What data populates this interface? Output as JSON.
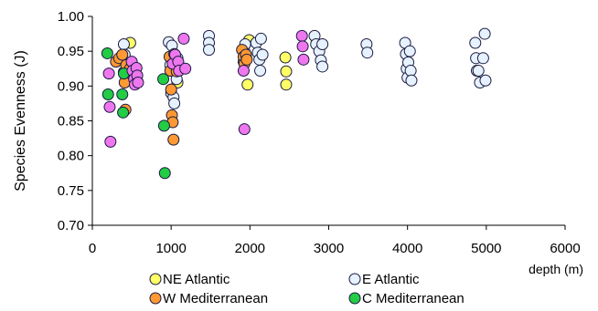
{
  "chart_data": {
    "type": "scatter",
    "title": "",
    "xlabel": "depth (m)",
    "ylabel": "Species Evenness (J)",
    "xlim": [
      0,
      6000
    ],
    "ylim": [
      0.7,
      1.0
    ],
    "xticks": [
      0,
      1000,
      2000,
      3000,
      4000,
      5000,
      6000
    ],
    "xtick_labels": [
      "0",
      "1000",
      "2000",
      "3000",
      "4000",
      "5000",
      "6000"
    ],
    "yticks": [
      0.7,
      0.75,
      0.8,
      0.85,
      0.9,
      0.95,
      1.0
    ],
    "ytick_labels": [
      "0.70",
      "0.75",
      "0.80",
      "0.85",
      "0.90",
      "0.95",
      "1.00"
    ],
    "grid": false,
    "legend_position": "bottom",
    "series": [
      {
        "name": "NE Atlantic",
        "color": "#ffff66",
        "points": [
          [
            480,
            0.962
          ],
          [
            1080,
            0.905
          ],
          [
            1920,
            0.935
          ],
          [
            1970,
            0.902
          ],
          [
            1990,
            0.966
          ],
          [
            2450,
            0.941
          ],
          [
            2460,
            0.921
          ],
          [
            2460,
            0.902
          ]
        ]
      },
      {
        "name": "E Atlantic",
        "color": "#e6f2ff",
        "points": [
          [
            400,
            0.96
          ],
          [
            410,
            0.945
          ],
          [
            970,
            0.963
          ],
          [
            990,
            0.93
          ],
          [
            1000,
            0.89
          ],
          [
            1010,
            0.958
          ],
          [
            1030,
            0.884
          ],
          [
            1040,
            0.875
          ],
          [
            1060,
            0.918
          ],
          [
            1070,
            0.91
          ],
          [
            1080,
            0.94
          ],
          [
            1480,
            0.972
          ],
          [
            1480,
            0.962
          ],
          [
            1480,
            0.952
          ],
          [
            1930,
            0.95
          ],
          [
            1940,
            0.96
          ],
          [
            2080,
            0.962
          ],
          [
            2100,
            0.948
          ],
          [
            2120,
            0.938
          ],
          [
            2130,
            0.922
          ],
          [
            2140,
            0.968
          ],
          [
            2160,
            0.945
          ],
          [
            2820,
            0.972
          ],
          [
            2840,
            0.96
          ],
          [
            2880,
            0.95
          ],
          [
            2900,
            0.937
          ],
          [
            2920,
            0.96
          ],
          [
            2920,
            0.928
          ],
          [
            3480,
            0.96
          ],
          [
            3490,
            0.948
          ],
          [
            3970,
            0.962
          ],
          [
            3980,
            0.946
          ],
          [
            3990,
            0.925
          ],
          [
            4000,
            0.912
          ],
          [
            4010,
            0.934
          ],
          [
            4030,
            0.95
          ],
          [
            4040,
            0.922
          ],
          [
            4050,
            0.908
          ],
          [
            4860,
            0.962
          ],
          [
            4870,
            0.94
          ],
          [
            4880,
            0.922
          ],
          [
            4900,
            0.922
          ],
          [
            4920,
            0.905
          ],
          [
            4960,
            0.94
          ],
          [
            4980,
            0.975
          ],
          [
            4990,
            0.908
          ]
        ]
      },
      {
        "name": "W Mediterranean",
        "color": "#ff9933",
        "points": [
          [
            300,
            0.935
          ],
          [
            340,
            0.94
          ],
          [
            380,
            0.945
          ],
          [
            400,
            0.92
          ],
          [
            410,
            0.905
          ],
          [
            420,
            0.866
          ],
          [
            430,
            0.93
          ],
          [
            480,
            0.925
          ],
          [
            980,
            0.942
          ],
          [
            990,
            0.922
          ],
          [
            1000,
            0.895
          ],
          [
            1010,
            0.858
          ],
          [
            1020,
            0.848
          ],
          [
            1030,
            0.823
          ],
          [
            1040,
            0.946
          ],
          [
            1060,
            0.935
          ],
          [
            1070,
            0.921
          ],
          [
            1900,
            0.952
          ],
          [
            1920,
            0.942
          ],
          [
            1930,
            0.932
          ],
          [
            1950,
            0.945
          ],
          [
            1960,
            0.938
          ]
        ]
      },
      {
        "name": "C Mediterranean",
        "color": "#22cc44",
        "points": [
          [
            190,
            0.947
          ],
          [
            200,
            0.888
          ],
          [
            380,
            0.888
          ],
          [
            390,
            0.862
          ],
          [
            400,
            0.918
          ],
          [
            900,
            0.91
          ],
          [
            910,
            0.843
          ],
          [
            920,
            0.775
          ]
        ]
      },
      {
        "name": "",
        "color": "#ee77ee",
        "points": [
          [
            210,
            0.918
          ],
          [
            220,
            0.87
          ],
          [
            230,
            0.82
          ],
          [
            500,
            0.935
          ],
          [
            510,
            0.922
          ],
          [
            530,
            0.91
          ],
          [
            540,
            0.902
          ],
          [
            560,
            0.926
          ],
          [
            570,
            0.915
          ],
          [
            580,
            0.905
          ],
          [
            1020,
            0.932
          ],
          [
            1050,
            0.945
          ],
          [
            1090,
            0.935
          ],
          [
            1100,
            0.922
          ],
          [
            1160,
            0.968
          ],
          [
            1180,
            0.925
          ],
          [
            1920,
            0.922
          ],
          [
            1930,
            0.838
          ],
          [
            2660,
            0.972
          ],
          [
            2670,
            0.957
          ],
          [
            2680,
            0.938
          ]
        ]
      }
    ]
  }
}
